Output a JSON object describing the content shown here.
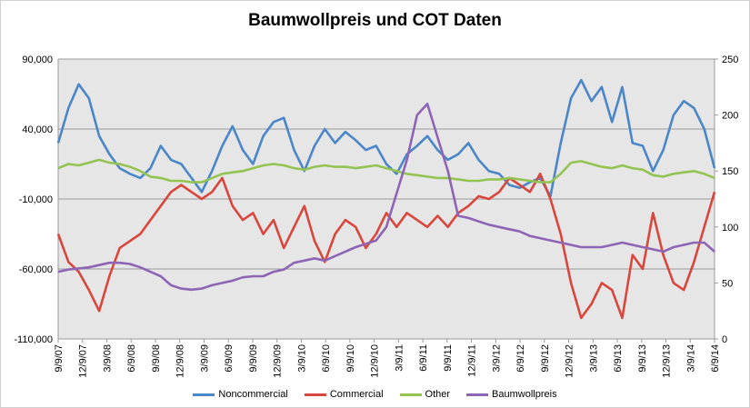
{
  "chart_data": {
    "type": "line",
    "title": "Baumwollpreis und COT Daten",
    "x_tick_labels": [
      "9/9/07",
      "12/9/07",
      "3/9/08",
      "6/9/08",
      "9/9/08",
      "12/9/08",
      "3/9/09",
      "6/9/09",
      "9/9/09",
      "12/9/09",
      "3/9/10",
      "6/9/10",
      "9/9/10",
      "12/9/10",
      "3/9/11",
      "6/9/11",
      "9/9/11",
      "12/9/11",
      "3/9/12",
      "6/9/12",
      "9/9/12",
      "12/9/12",
      "3/9/13",
      "6/9/13",
      "9/9/13",
      "12/9/13",
      "3/9/14",
      "6/9/14"
    ],
    "y_left": {
      "ylim": [
        -110000,
        90000
      ],
      "ticks": [
        "90,000",
        "40,000",
        "-10,000",
        "-60,000",
        "-110,000"
      ],
      "tick_values": [
        90000,
        40000,
        -10000,
        -60000,
        -110000
      ]
    },
    "y_right": {
      "ylim": [
        0,
        250
      ],
      "ticks": [
        "250",
        "200",
        "150",
        "100",
        "50",
        "0"
      ],
      "tick_values": [
        250,
        200,
        150,
        100,
        50,
        0
      ]
    },
    "grid": true,
    "legend_position": "bottom",
    "series": [
      {
        "name": "Noncommercial",
        "color": "#4a86c8",
        "axis": "left",
        "values": [
          30000,
          55000,
          72000,
          62000,
          35000,
          22000,
          12000,
          8000,
          5000,
          12000,
          28000,
          18000,
          15000,
          5000,
          -5000,
          10000,
          28000,
          42000,
          25000,
          15000,
          35000,
          45000,
          48000,
          25000,
          10000,
          28000,
          40000,
          30000,
          38000,
          32000,
          25000,
          28000,
          15000,
          8000,
          22000,
          28000,
          35000,
          25000,
          18000,
          22000,
          30000,
          18000,
          10000,
          8000,
          0,
          -2000,
          2000,
          5000,
          -8000,
          30000,
          62000,
          75000,
          60000,
          70000,
          45000,
          70000,
          30000,
          28000,
          10000,
          25000,
          50000,
          60000,
          55000,
          40000,
          12000
        ]
      },
      {
        "name": "Commercial",
        "color": "#d9463c",
        "axis": "left",
        "values": [
          -35000,
          -55000,
          -62000,
          -75000,
          -90000,
          -65000,
          -45000,
          -40000,
          -35000,
          -25000,
          -15000,
          -5000,
          0,
          -5000,
          -10000,
          -5000,
          5000,
          -15000,
          -25000,
          -20000,
          -35000,
          -25000,
          -45000,
          -30000,
          -15000,
          -40000,
          -55000,
          -35000,
          -25000,
          -30000,
          -45000,
          -35000,
          -20000,
          -30000,
          -20000,
          -25000,
          -30000,
          -22000,
          -30000,
          -20000,
          -15000,
          -8000,
          -10000,
          -5000,
          5000,
          0,
          -5000,
          8000,
          -10000,
          -35000,
          -70000,
          -95000,
          -85000,
          -70000,
          -75000,
          -95000,
          -50000,
          -60000,
          -20000,
          -50000,
          -70000,
          -75000,
          -55000,
          -30000,
          -5000
        ]
      },
      {
        "name": "Other",
        "color": "#93c351",
        "axis": "left",
        "values": [
          12000,
          15000,
          14000,
          16000,
          18000,
          16000,
          15000,
          13000,
          10000,
          6000,
          5000,
          3000,
          3000,
          2000,
          2000,
          5000,
          8000,
          9000,
          10000,
          12000,
          14000,
          15000,
          14000,
          12000,
          11000,
          13000,
          14000,
          13000,
          13000,
          12000,
          13000,
          14000,
          12000,
          10000,
          8000,
          7000,
          6000,
          5000,
          5000,
          4000,
          3000,
          3000,
          4000,
          4000,
          5000,
          4000,
          3000,
          2000,
          2000,
          8000,
          16000,
          17000,
          15000,
          13000,
          12000,
          14000,
          12000,
          11000,
          7000,
          6000,
          8000,
          9000,
          10000,
          8000,
          5000
        ]
      },
      {
        "name": "Baumwollpreis",
        "color": "#8e64b5",
        "axis": "right",
        "values": [
          60,
          62,
          63,
          64,
          66,
          68,
          68,
          67,
          64,
          60,
          56,
          48,
          45,
          44,
          45,
          48,
          50,
          52,
          55,
          56,
          56,
          60,
          62,
          68,
          70,
          72,
          70,
          74,
          78,
          82,
          85,
          88,
          100,
          130,
          160,
          200,
          210,
          180,
          150,
          110,
          108,
          105,
          102,
          100,
          98,
          96,
          92,
          90,
          88,
          86,
          84,
          82,
          82,
          82,
          84,
          86,
          84,
          82,
          80,
          78,
          82,
          84,
          86,
          86,
          78
        ]
      }
    ]
  }
}
